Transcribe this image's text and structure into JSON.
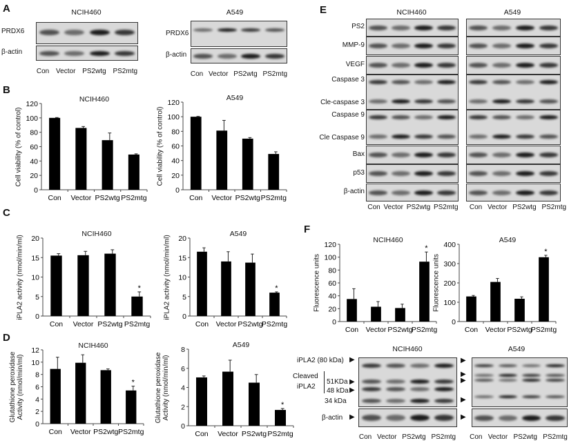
{
  "panels": {
    "A": "A",
    "B": "B",
    "C": "C",
    "D": "D",
    "E": "E",
    "F": "F"
  },
  "lanes": [
    "Con",
    "Vector",
    "PS2wtg",
    "PS2mtg"
  ],
  "cell_lines": [
    "NCIH460",
    "A549"
  ],
  "panel_a": {
    "protein": "PRDX6",
    "loading": "β-actin"
  },
  "panel_e": {
    "rows": [
      "PS2",
      "MMP-9",
      "VEGF",
      "Caspase 3",
      "Cle-caspase 3",
      "Caspase 9",
      "Cle Caspase 9",
      "Bax",
      "p53",
      "β-actin"
    ]
  },
  "panel_f_blot": {
    "labels": [
      "iPLA2 (80 kDa)",
      "Cleaved",
      "iPLA2",
      "51KDa",
      "48 kDa",
      "34 kDa",
      "β-actin"
    ]
  },
  "chart_data": [
    {
      "id": "b1",
      "type": "bar",
      "title": "NCIH460",
      "ylabel": "Cell viability (% of control)",
      "categories": [
        "Con",
        "Vector",
        "PS2wtg",
        "PS2mtg"
      ],
      "values": [
        100,
        86,
        69,
        49
      ],
      "errors": [
        0.5,
        2,
        10,
        1
      ],
      "significant": [
        false,
        false,
        false,
        false
      ],
      "ylim": [
        0,
        120
      ],
      "yticks": [
        0,
        20,
        40,
        60,
        80,
        100,
        120
      ],
      "bar_color": "#000000"
    },
    {
      "id": "b2",
      "type": "bar",
      "title": "A549",
      "ylabel": "Cell viability (% of control)",
      "categories": [
        "Con",
        "Vector",
        "PS2wtg",
        "PS2mtg"
      ],
      "values": [
        100,
        81,
        70,
        49
      ],
      "errors": [
        0.5,
        14,
        1.5,
        3
      ],
      "significant": [
        false,
        false,
        false,
        false
      ],
      "ylim": [
        0,
        120
      ],
      "yticks": [
        0,
        20,
        40,
        60,
        80,
        100,
        120
      ],
      "bar_color": "#000000"
    },
    {
      "id": "c1",
      "type": "bar",
      "title": "NCIH460",
      "ylabel": "iPLA2 activity (nmol/min/ml)",
      "categories": [
        "Con",
        "Vector",
        "PS2wtg",
        "PS2mtg"
      ],
      "values": [
        15.5,
        15.6,
        16,
        5
      ],
      "errors": [
        0.5,
        1,
        1,
        1.2
      ],
      "significant": [
        false,
        false,
        false,
        true
      ],
      "ylim": [
        0,
        20
      ],
      "yticks": [
        0,
        5,
        10,
        15,
        20
      ],
      "bar_color": "#000000"
    },
    {
      "id": "c2",
      "type": "bar",
      "title": "A549",
      "ylabel": "iPLA2 activity (nmol/min/ml)",
      "categories": [
        "Con",
        "Vector",
        "PS2wtg",
        "PS2mtg"
      ],
      "values": [
        16.5,
        14,
        13.7,
        6
      ],
      "errors": [
        1,
        2.5,
        2.2,
        0.2
      ],
      "significant": [
        false,
        false,
        false,
        true
      ],
      "ylim": [
        0,
        20
      ],
      "yticks": [
        0,
        5,
        10,
        15,
        20
      ],
      "bar_color": "#000000"
    },
    {
      "id": "d1",
      "type": "bar",
      "title": "NCIH460",
      "ylabel": "Glutathione peroxidase\nActivity (nmol/min/ml)",
      "categories": [
        "Con",
        "Vector",
        "PS2wtg",
        "PS2mtg"
      ],
      "values": [
        8.9,
        9.9,
        8.7,
        5.4
      ],
      "errors": [
        1.9,
        1.3,
        0.2,
        0.7
      ],
      "significant": [
        false,
        false,
        false,
        true
      ],
      "ylim": [
        0,
        12
      ],
      "yticks": [
        0,
        2,
        4,
        6,
        8,
        10,
        12
      ],
      "bar_color": "#000000"
    },
    {
      "id": "d2",
      "type": "bar",
      "title": "A549",
      "ylabel": "Glutathione peroxidase\nActivity (nmol/min/ml)",
      "categories": [
        "Con",
        "Vector",
        "PS2wtg",
        "PS2mtg"
      ],
      "values": [
        5.05,
        5.65,
        4.5,
        1.65
      ],
      "errors": [
        0.15,
        1.2,
        0.85,
        0.15
      ],
      "significant": [
        false,
        false,
        false,
        true
      ],
      "ylim": [
        0,
        8
      ],
      "yticks": [
        0,
        2,
        4,
        6,
        8
      ],
      "bar_color": "#000000"
    },
    {
      "id": "f1",
      "type": "bar",
      "title": "NCIH460",
      "ylabel": "Fluorescence units",
      "categories": [
        "Con",
        "Vector",
        "PS2wtg",
        "PS2mtg"
      ],
      "values": [
        35,
        23,
        21,
        93
      ],
      "errors": [
        16,
        8,
        6,
        15
      ],
      "significant": [
        false,
        false,
        false,
        true
      ],
      "ylim": [
        0,
        120
      ],
      "yticks": [
        0,
        20,
        40,
        60,
        80,
        100,
        120
      ],
      "bar_color": "#000000"
    },
    {
      "id": "f2",
      "type": "bar",
      "title": "A549",
      "ylabel": "Fluorescence units",
      "categories": [
        "Con",
        "Vector",
        "PS2wtg",
        "PS2mtg"
      ],
      "values": [
        130,
        205,
        118,
        333
      ],
      "errors": [
        5,
        18,
        10,
        10
      ],
      "significant": [
        false,
        false,
        false,
        true
      ],
      "ylim": [
        0,
        400
      ],
      "yticks": [
        0,
        100,
        200,
        300,
        400
      ],
      "bar_color": "#000000"
    }
  ],
  "significance_marker": "*"
}
